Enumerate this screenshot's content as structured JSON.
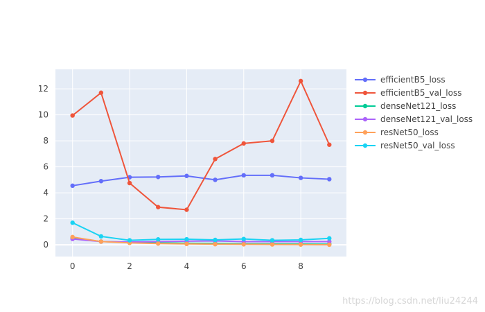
{
  "chart_data": {
    "type": "line",
    "title": "",
    "xlabel": "",
    "ylabel": "",
    "x": [
      0,
      1,
      2,
      3,
      4,
      5,
      6,
      7,
      8,
      9
    ],
    "xlim": [
      -0.6,
      9.6
    ],
    "ylim": [
      -0.9,
      13.5
    ],
    "xticks": [
      0,
      2,
      4,
      6,
      8
    ],
    "yticks": [
      0,
      2,
      4,
      6,
      8,
      10,
      12
    ],
    "grid": true,
    "legend_position": "top-right",
    "series": [
      {
        "name": "efficientB5_loss",
        "color": "#636efa",
        "values": [
          4.55,
          4.9,
          5.2,
          5.22,
          5.3,
          5.0,
          5.35,
          5.35,
          5.15,
          5.05
        ]
      },
      {
        "name": "efficientB5_val_loss",
        "color": "#EF553B",
        "values": [
          9.95,
          11.7,
          4.75,
          2.9,
          2.7,
          6.6,
          7.8,
          8.0,
          12.6,
          7.7
        ]
      },
      {
        "name": "denseNet121_loss",
        "color": "#00cc96",
        "values": [
          0.55,
          0.25,
          0.2,
          0.15,
          0.12,
          0.1,
          0.08,
          0.07,
          0.06,
          0.05
        ]
      },
      {
        "name": "denseNet121_val_loss",
        "color": "#ab63fa",
        "values": [
          0.45,
          0.25,
          0.22,
          0.25,
          0.28,
          0.3,
          0.25,
          0.25,
          0.25,
          0.25
        ]
      },
      {
        "name": "resNet50_loss",
        "color": "#FFA15A",
        "values": [
          0.6,
          0.25,
          0.15,
          0.1,
          0.07,
          0.05,
          0.04,
          0.03,
          0.02,
          0.01
        ]
      },
      {
        "name": "resNet50_val_loss",
        "color": "#19d3f3",
        "values": [
          1.7,
          0.65,
          0.35,
          0.42,
          0.43,
          0.38,
          0.45,
          0.35,
          0.38,
          0.5
        ]
      }
    ]
  },
  "watermark": "https://blog.csdn.net/liu24244"
}
